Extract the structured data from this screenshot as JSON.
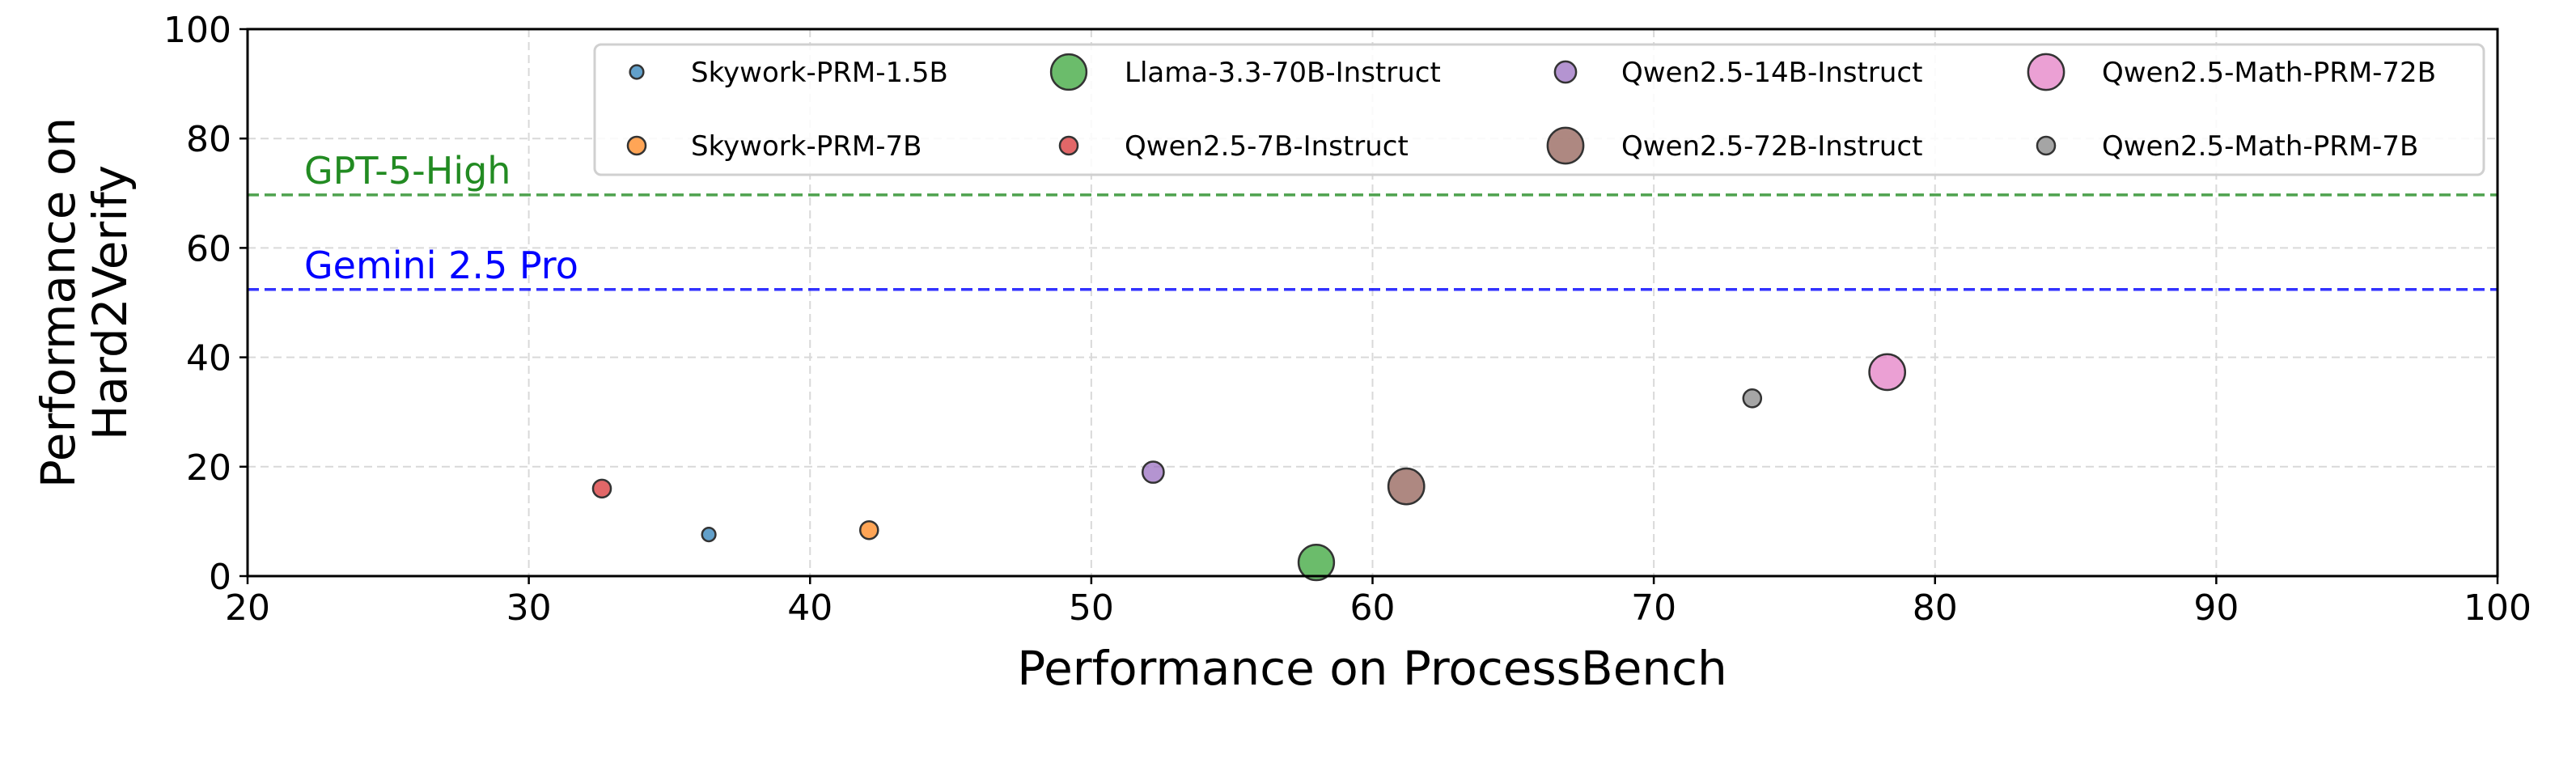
{
  "chart_data": {
    "type": "scatter",
    "xlabel": "Performance on ProcessBench",
    "ylabel_lines": [
      "Performance on",
      "Hard2Verify"
    ],
    "xlim": [
      20,
      100
    ],
    "ylim": [
      0,
      100
    ],
    "xticks": [
      20,
      30,
      40,
      50,
      60,
      70,
      80,
      90,
      100
    ],
    "yticks": [
      0,
      20,
      40,
      60,
      80,
      100
    ],
    "grid": true,
    "legend_placement": "top-right",
    "marker_size_encodes": "model parameters (B)",
    "series": [
      {
        "name": "Skywork-PRM-1.5B",
        "x": 36.4,
        "y": 7.6,
        "params_b": 1.5,
        "color": "#1f77b4"
      },
      {
        "name": "Skywork-PRM-7B",
        "x": 42.1,
        "y": 8.4,
        "params_b": 7,
        "color": "#ff7f0e"
      },
      {
        "name": "Llama-3.3-70B-Instruct",
        "x": 58.0,
        "y": 2.5,
        "params_b": 70,
        "color": "#2ca02c"
      },
      {
        "name": "Qwen2.5-7B-Instruct",
        "x": 32.6,
        "y": 16.0,
        "params_b": 7,
        "color": "#d62728"
      },
      {
        "name": "Qwen2.5-14B-Instruct",
        "x": 52.2,
        "y": 19.0,
        "params_b": 14,
        "color": "#9467bd"
      },
      {
        "name": "Qwen2.5-72B-Instruct",
        "x": 61.2,
        "y": 16.4,
        "params_b": 72,
        "color": "#8c564b"
      },
      {
        "name": "Qwen2.5-Math-PRM-72B",
        "x": 78.3,
        "y": 37.3,
        "params_b": 72,
        "color": "#e377c2"
      },
      {
        "name": "Qwen2.5-Math-PRM-7B",
        "x": 73.5,
        "y": 32.5,
        "params_b": 7,
        "color": "#7f7f7f"
      }
    ],
    "reference_lines": [
      {
        "label": "GPT-5-High",
        "y": 69.7,
        "color": "#228B22"
      },
      {
        "label": "Gemini 2.5 Pro",
        "y": 52.4,
        "color": "#0000ff"
      }
    ]
  }
}
